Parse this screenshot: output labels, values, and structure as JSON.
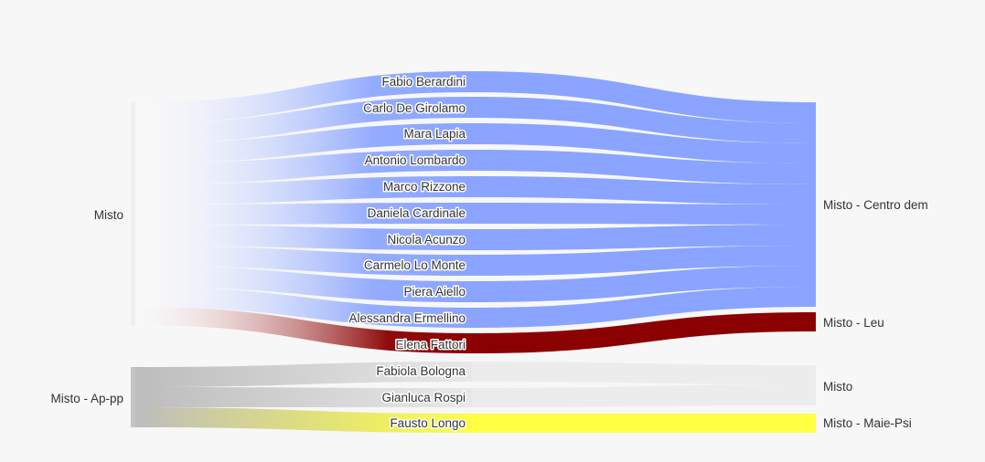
{
  "diagram": {
    "type": "sankey",
    "source_nodes": [
      {
        "id": "src-misto",
        "label": "Misto"
      },
      {
        "id": "src-misto-ap-pp",
        "label": "Misto - Ap-pp"
      }
    ],
    "middle_nodes": [
      {
        "label": "Fabio Berardini",
        "from": "Misto",
        "to": "Misto - Centro dem"
      },
      {
        "label": "Carlo De Girolamo",
        "from": "Misto",
        "to": "Misto - Centro dem"
      },
      {
        "label": "Mara Lapia",
        "from": "Misto",
        "to": "Misto - Centro dem"
      },
      {
        "label": "Antonio Lombardo",
        "from": "Misto",
        "to": "Misto - Centro dem"
      },
      {
        "label": "Marco Rizzone",
        "from": "Misto",
        "to": "Misto - Centro dem"
      },
      {
        "label": "Daniela Cardinale",
        "from": "Misto",
        "to": "Misto - Centro dem"
      },
      {
        "label": "Nicola Acunzo",
        "from": "Misto",
        "to": "Misto - Centro dem"
      },
      {
        "label": "Carmelo Lo Monte",
        "from": "Misto",
        "to": "Misto - Centro dem"
      },
      {
        "label": "Piera Aiello",
        "from": "Misto",
        "to": "Misto - Centro dem"
      },
      {
        "label": "Alessandra Ermellino",
        "from": "Misto",
        "to": "Misto - Centro dem"
      },
      {
        "label": "Elena Fattori",
        "from": "Misto",
        "to": "Misto - Leu"
      },
      {
        "label": "Fabiola Bologna",
        "from": "Misto - Ap-pp",
        "to": "Misto"
      },
      {
        "label": "Gianluca Rospi",
        "from": "Misto - Ap-pp",
        "to": "Misto"
      },
      {
        "label": "Fausto Longo",
        "from": "Misto - Ap-pp",
        "to": "Misto - Maie-Psi"
      }
    ],
    "target_nodes": [
      {
        "label": "Misto - Centro dem",
        "color": "#8aa4ff"
      },
      {
        "label": "Misto - Leu",
        "color": "#8b0000"
      },
      {
        "label": "Misto",
        "color": "#ececec"
      },
      {
        "label": "Misto - Maie-Psi",
        "color": "#ffff44"
      }
    ],
    "colors": {
      "source_node": "#efefef",
      "source_node_ap": "#c4c4c4",
      "centro_dem": "#8aa4ff",
      "leu": "#8b0000",
      "misto_target": "#ececec",
      "maie_psi": "#ffff44"
    }
  }
}
